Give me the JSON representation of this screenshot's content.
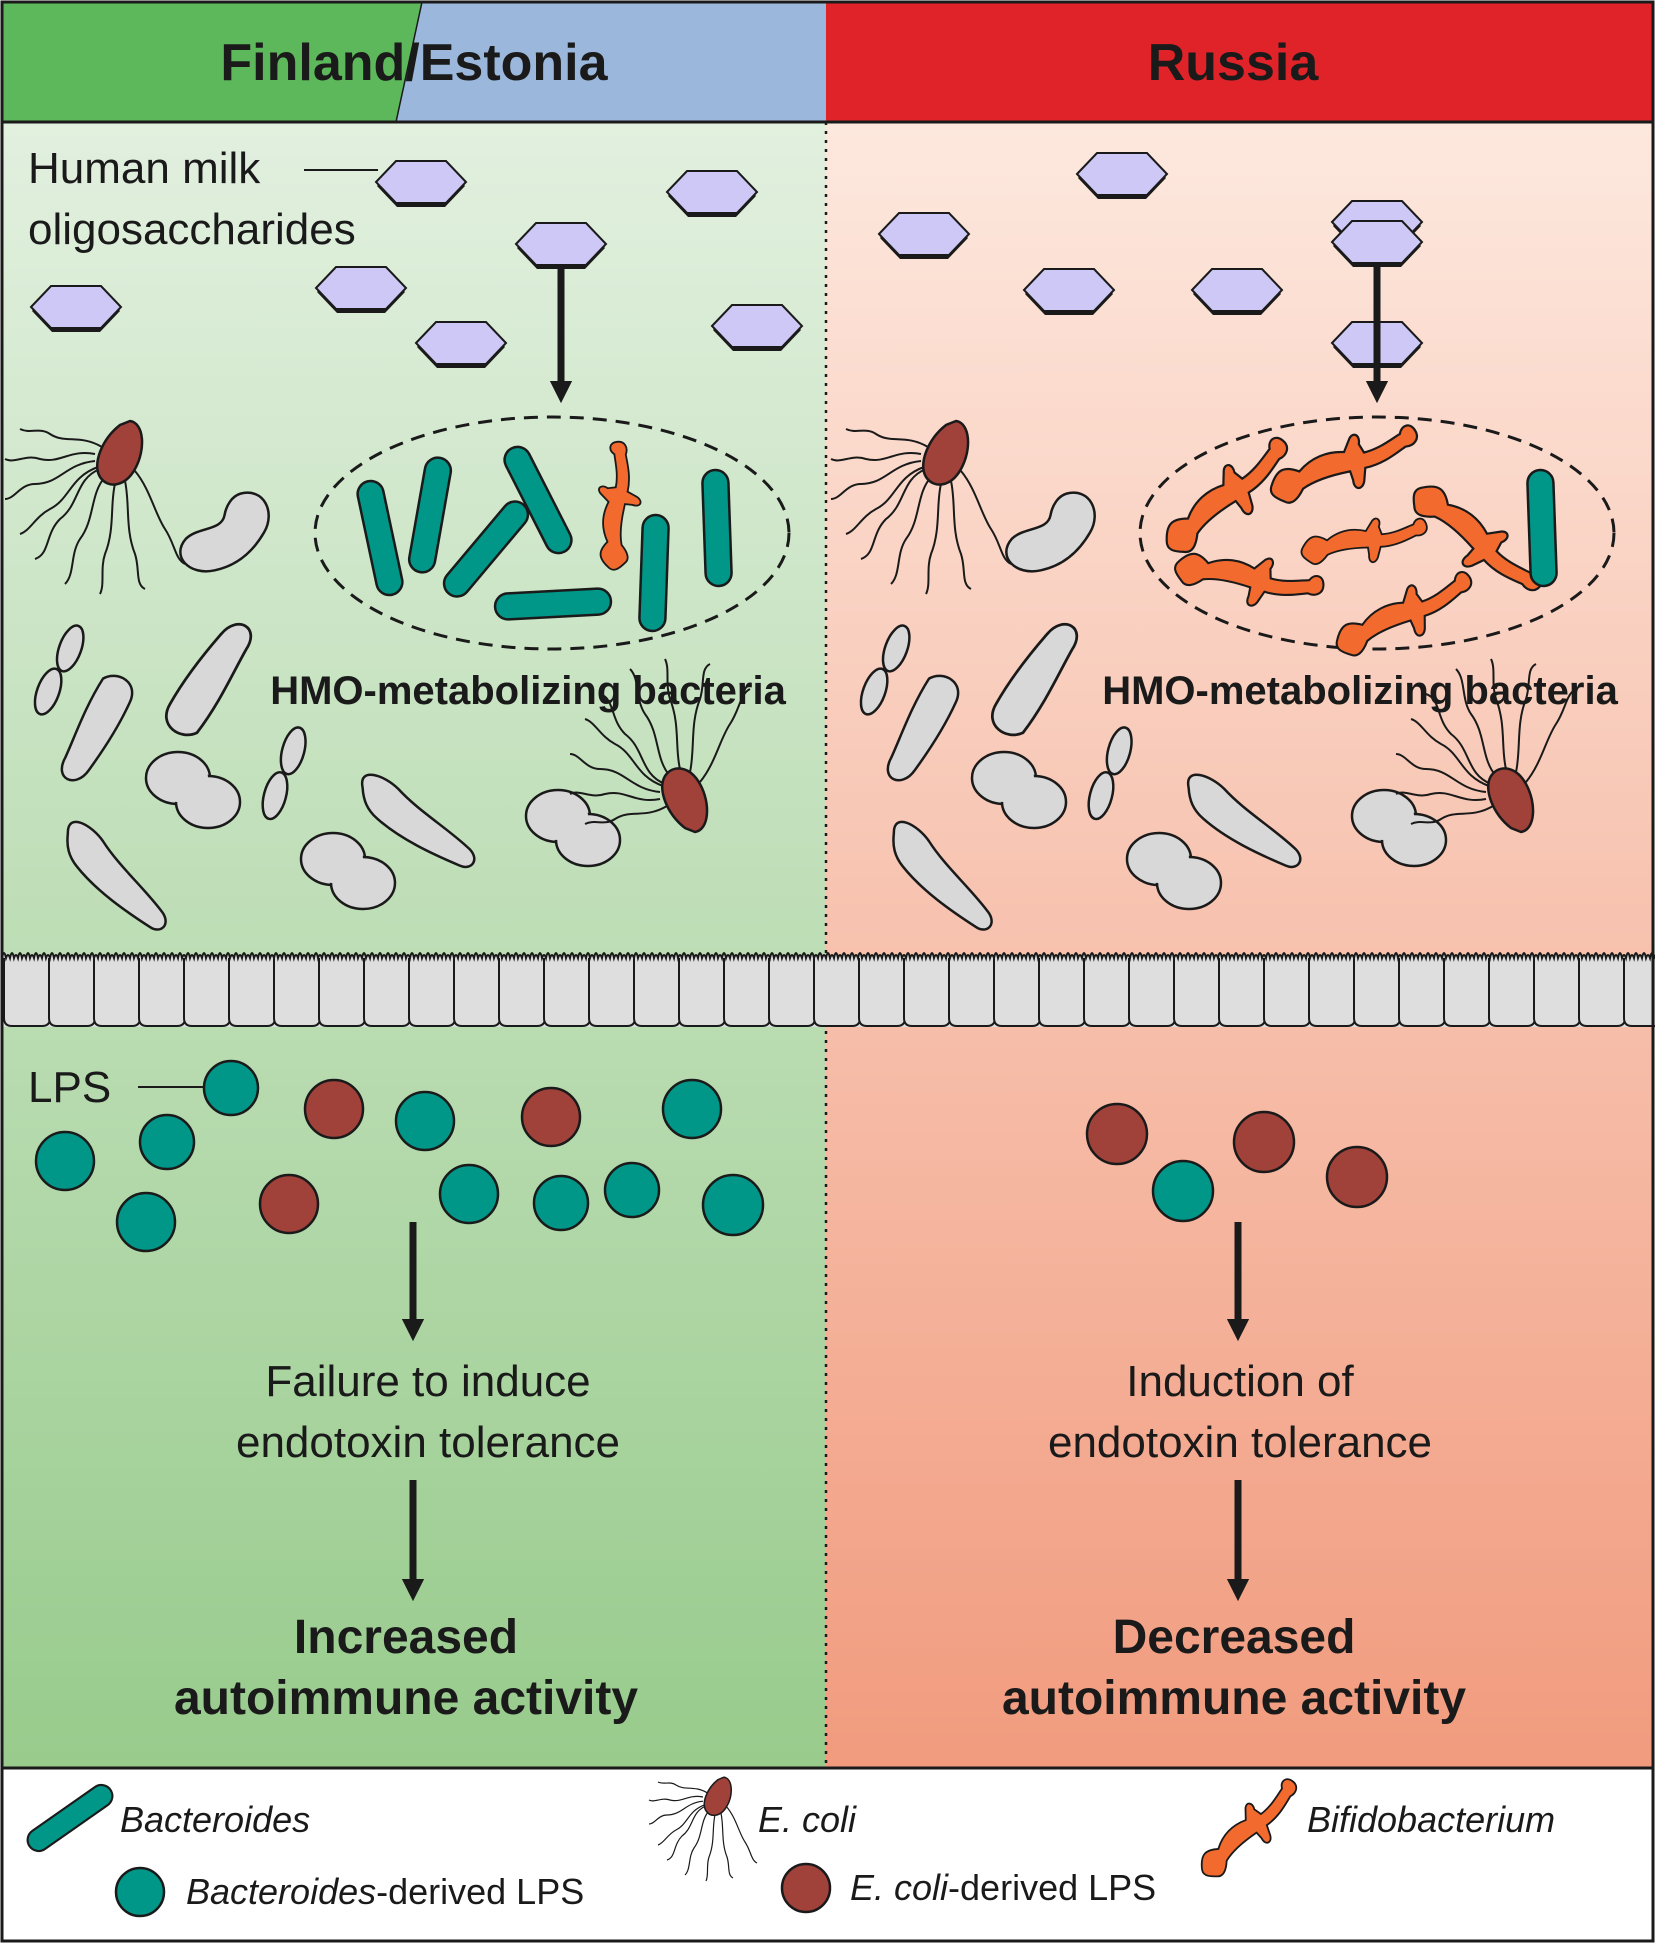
{
  "header": {
    "left_title": "Finland/Estonia",
    "right_title": "Russia"
  },
  "labels": {
    "hmo": [
      "Human milk",
      "oligosaccharides"
    ],
    "hmo_bacteria": "HMO-metabolizing bacteria",
    "lps": "LPS"
  },
  "left": {
    "mechanism": [
      "Failure to induce",
      "endotoxin tolerance"
    ],
    "outcome": [
      "Increased",
      "autoimmune activity"
    ]
  },
  "right": {
    "mechanism": [
      "Induction of",
      "endotoxin tolerance"
    ],
    "outcome": [
      "Decreased",
      "autoimmune activity"
    ]
  },
  "legend": {
    "bacteroides": "Bacteroides",
    "ecoli": "E. coli",
    "bifido": "Bifidobacterium",
    "bacteroides_lps_italic": "Bacteroides",
    "bacteroides_lps_suffix": "-derived LPS",
    "ecoli_lps_italic": "E. coli",
    "ecoli_lps_suffix": "-derived LPS"
  },
  "colors": {
    "finland_green": "#5cb85a",
    "estonia_blue": "#9bb8dc",
    "russia_red": "#e02329",
    "bacteroides_teal": "#009688",
    "ecoli_brown": "#a0413a",
    "bifido_orange": "#f26a2e",
    "hmo_lavender": "#cdc8f5",
    "neutral_grey": "#d8d8d8"
  }
}
